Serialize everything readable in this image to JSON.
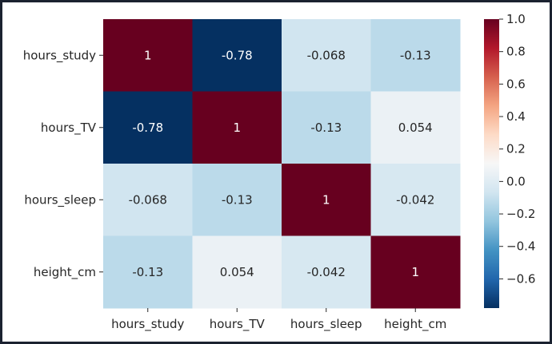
{
  "chart_data": {
    "type": "heatmap",
    "title": "",
    "xlabel": "",
    "ylabel": "",
    "row_labels": [
      "hours_study",
      "hours_TV",
      "hours_sleep",
      "height_cm"
    ],
    "col_labels": [
      "hours_study",
      "hours_TV",
      "hours_sleep",
      "height_cm"
    ],
    "values": [
      [
        1,
        -0.78,
        -0.068,
        -0.13
      ],
      [
        -0.78,
        1,
        -0.13,
        0.054
      ],
      [
        -0.068,
        -0.13,
        1,
        -0.042
      ],
      [
        -0.13,
        0.054,
        -0.042,
        1
      ]
    ],
    "annotations": [
      [
        "1",
        "-0.78",
        "-0.068",
        "-0.13"
      ],
      [
        "-0.78",
        "1",
        "-0.13",
        "0.054"
      ],
      [
        "-0.068",
        "-0.13",
        "1",
        "-0.042"
      ],
      [
        "-0.13",
        "0.054",
        "-0.042",
        "1"
      ]
    ],
    "colormap": "RdBu_r",
    "colorbar": {
      "vmin": -0.78,
      "vmax": 1,
      "ticks": [
        1.0,
        0.8,
        0.6,
        0.4,
        0.2,
        0.0,
        -0.2,
        -0.4,
        -0.6
      ],
      "tick_labels": [
        "1.0",
        "0.8",
        "0.6",
        "0.4",
        "0.2",
        "0.0",
        "−0.2",
        "−0.4",
        "−0.6"
      ],
      "placement": "right"
    }
  },
  "colors": {
    "frame_background": "#1b2230",
    "plot_background": "#ffffff",
    "annotation_light": "#ffffff",
    "annotation_dark": "#262626",
    "axis_text": "#262626"
  }
}
